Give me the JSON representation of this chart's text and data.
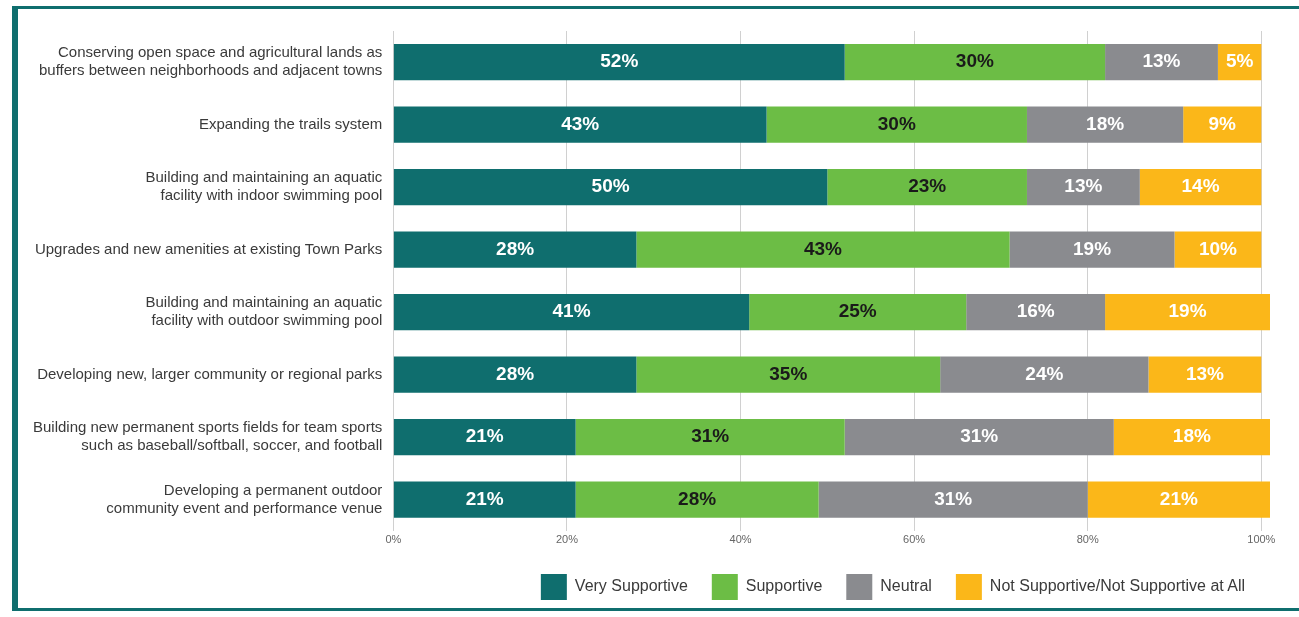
{
  "chart_data": {
    "type": "bar",
    "orientation": "horizontal",
    "stacked": true,
    "categories": [
      "Conserving open space and agricultural lands as buffers between neighborhoods and adjacent towns",
      "Expanding the trails system",
      "Building and maintaining an aquatic facility with indoor swimming pool",
      "Upgrades and new amenities at existing Town Parks",
      "Building and maintaining an aquatic facility with outdoor swimming pool",
      "Developing new, larger community or regional parks",
      "Building new permanent sports fields for team sports such as baseball/softball, soccer, and football",
      "Developing a permanent outdoor community event and performance venue"
    ],
    "series": [
      {
        "name": "Very Supportive",
        "color": "#0f6e6e",
        "values": [
          52,
          43,
          50,
          28,
          41,
          28,
          21,
          21
        ],
        "value_labels": [
          "52%",
          "43%",
          "50%",
          "28%",
          "41%",
          "28%",
          "21%",
          "21%"
        ]
      },
      {
        "name": "Supportive",
        "color": "#6cbd45",
        "values": [
          30,
          30,
          23,
          43,
          25,
          35,
          31,
          28
        ],
        "value_labels": [
          "30%",
          "30%",
          "23%",
          "43%",
          "25%",
          "35%",
          "31%",
          "28%"
        ]
      },
      {
        "name": "Neutral",
        "color": "#8a8b8f",
        "values": [
          13,
          18,
          13,
          19,
          16,
          24,
          31,
          31
        ],
        "value_labels": [
          "13%",
          "18%",
          "13%",
          "19%",
          "16%",
          "24%",
          "31%",
          "31%"
        ]
      },
      {
        "name": "Not Supportive/Not Supportive at All",
        "color": "#fbb719",
        "values": [
          5,
          9,
          14,
          10,
          19,
          13,
          18,
          21
        ],
        "value_labels": [
          "5%",
          "9%",
          "14%",
          "10%",
          "19%",
          "13%",
          "18%",
          "21%"
        ]
      }
    ],
    "xlim": [
      0,
      101
    ],
    "xticks": [
      {
        "value": 0,
        "label": "0%"
      },
      {
        "value": 20,
        "label": "20%"
      },
      {
        "value": 40,
        "label": "40%"
      },
      {
        "value": 60,
        "label": "60%"
      },
      {
        "value": 80,
        "label": "80%"
      },
      {
        "value": 100,
        "label": "100%"
      }
    ],
    "grid": "x",
    "legend": "bottom"
  }
}
